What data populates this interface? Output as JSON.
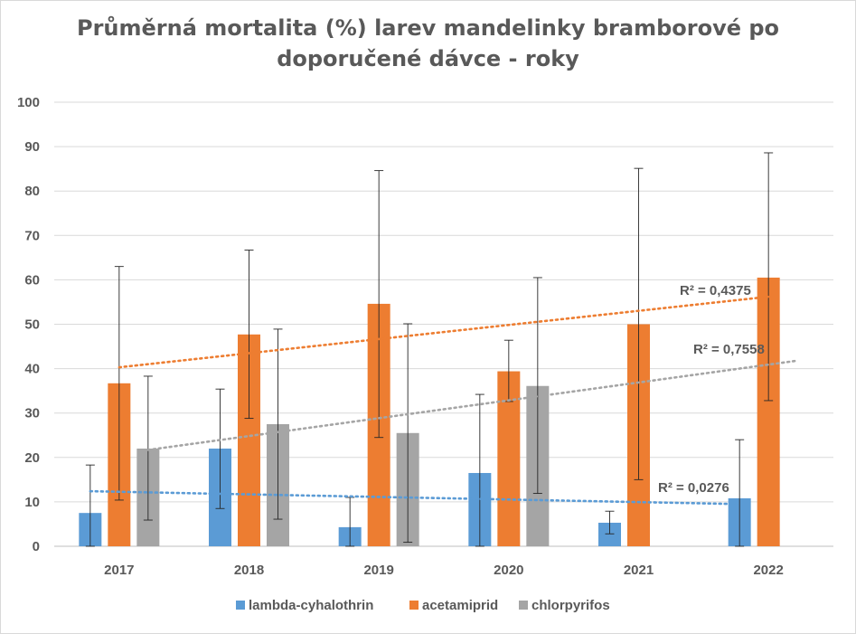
{
  "chart_data": {
    "type": "bar",
    "title_lines": [
      "Průměrná mortalita (%) larev mandelinky bramborové po",
      "doporučené dávce - roky"
    ],
    "categories": [
      "2017",
      "2018",
      "2019",
      "2020",
      "2021",
      "2022"
    ],
    "ylim": [
      0,
      100
    ],
    "yticks": [
      0,
      10,
      20,
      30,
      40,
      50,
      60,
      70,
      80,
      90,
      100
    ],
    "grid": true,
    "legend_position": "bottom",
    "series": [
      {
        "name": "lambda-cyhalothrin",
        "color": "#5b9bd5",
        "values": [
          7.5,
          22,
          4.3,
          16.5,
          5.3,
          10.8
        ],
        "err_low": [
          0,
          8.5,
          0,
          0,
          2.8,
          0
        ],
        "err_high": [
          18.3,
          35.4,
          11,
          34.2,
          7.9,
          24
        ],
        "trend": [
          12.4,
          9.5
        ],
        "r2": "R² = 0,0276"
      },
      {
        "name": "acetamiprid",
        "color": "#ed7d31",
        "values": [
          36.7,
          47.7,
          54.6,
          39.4,
          50,
          60.5
        ],
        "err_low": [
          10.4,
          28.8,
          24.5,
          32.6,
          15,
          32.8
        ],
        "err_high": [
          63,
          66.7,
          84.6,
          46.4,
          85.1,
          88.6
        ],
        "trend": [
          40.3,
          56.2
        ],
        "r2": "R² = 0,4375"
      },
      {
        "name": "chlorpyrifos",
        "color": "#a5a5a5",
        "values": [
          22,
          27.5,
          25.5,
          36.1,
          null,
          null
        ],
        "err_low": [
          5.9,
          6.1,
          0.9,
          11.9,
          null,
          null
        ],
        "err_high": [
          38.3,
          48.9,
          50.1,
          60.5,
          null,
          null
        ],
        "trend": [
          21.7,
          41.8
        ],
        "r2": "R² = 0,7558"
      }
    ]
  }
}
